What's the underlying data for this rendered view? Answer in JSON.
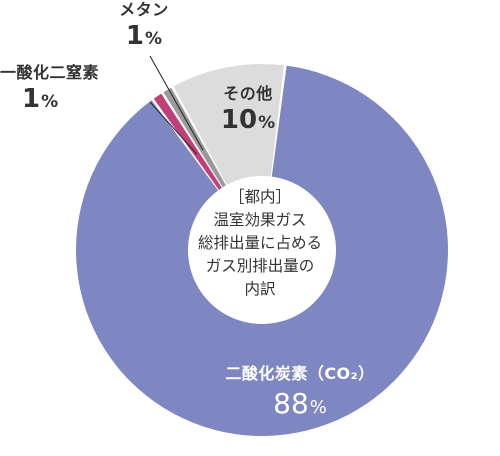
{
  "chart_data": {
    "type": "pie",
    "variant": "donut",
    "center_text": [
      "［都内］",
      "温室効果ガス",
      "総排出量に占める",
      "ガス別排出量の",
      "内訳"
    ],
    "slices": [
      {
        "label": "二酸化炭素（CO₂）",
        "value": 88,
        "display": "88",
        "unit": "%",
        "color": "#7f87c2"
      },
      {
        "label": "一酸化二窒素",
        "value": 1,
        "display": "1",
        "unit": "%",
        "color": "#c2407a"
      },
      {
        "label": "メタン",
        "value": 1,
        "display": "1",
        "unit": "%",
        "color": "#9a9a9a"
      },
      {
        "label": "その他",
        "value": 10,
        "display": "10",
        "unit": "%",
        "color": "#dcdcdc"
      }
    ]
  }
}
